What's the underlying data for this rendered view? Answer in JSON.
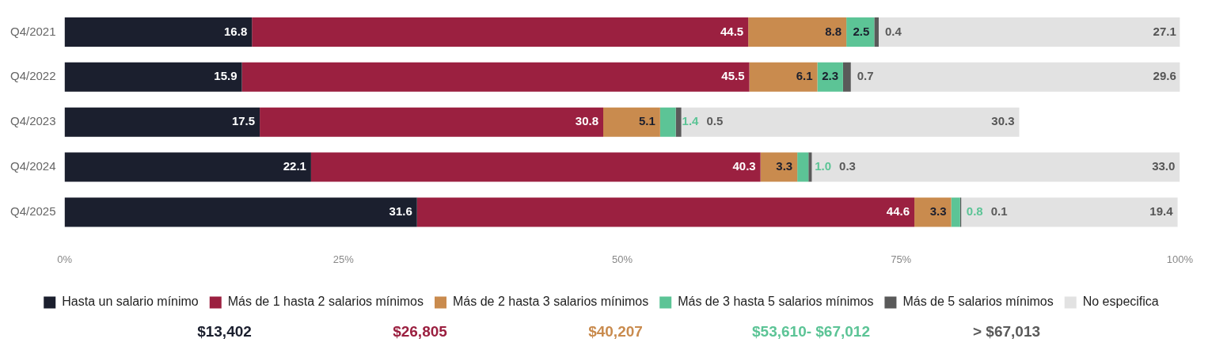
{
  "chart_data": {
    "type": "bar",
    "orientation": "horizontal",
    "stacked": true,
    "grid": false,
    "legend": "bottom",
    "categories": [
      "Q4/2021",
      "Q4/2022",
      "Q4/2023",
      "Q4/2024",
      "Q4/2025"
    ],
    "series": [
      {
        "name": "Hasta un salario mínimo",
        "color": "#1b1f2e",
        "values": [
          16.8,
          15.9,
          17.5,
          22.1,
          31.6
        ],
        "value_labels": [
          "16.8",
          "15.9",
          "17.5",
          "22.1",
          "31.6"
        ]
      },
      {
        "name": "Más de 1 hasta 2 salarios mínimos",
        "color": "#9b2040",
        "values": [
          44.5,
          45.5,
          30.8,
          40.3,
          44.6
        ],
        "value_labels": [
          "44.5",
          "45.5",
          "30.8",
          "40.3",
          "44.6"
        ]
      },
      {
        "name": "Más de 2 hasta 3 salarios mínimos",
        "color": "#c98b4e",
        "values": [
          8.8,
          6.1,
          5.1,
          3.3,
          3.3
        ],
        "value_labels": [
          "8.8",
          "6.1",
          "5.1",
          "3.3",
          "3.3"
        ]
      },
      {
        "name": "Más de 3 hasta 5 salarios mínimos",
        "color": "#5cc496",
        "values": [
          2.5,
          2.3,
          1.4,
          1.0,
          0.8
        ],
        "value_labels": [
          "2.5",
          "2.3",
          "1.4",
          "1.0",
          "0.8"
        ]
      },
      {
        "name": "Más de 5 salarios mínimos",
        "color": "#5a5a5a",
        "values": [
          0.4,
          0.7,
          0.5,
          0.3,
          0.1
        ],
        "value_labels": [
          "0.4",
          "0.7",
          "0.5",
          "0.3",
          "0.1"
        ]
      },
      {
        "name": "No especifica",
        "color": "#e2e2e2",
        "values": [
          27.1,
          29.6,
          30.3,
          33.0,
          19.4
        ],
        "value_labels": [
          "27.1",
          "29.6",
          "30.3",
          "33.0",
          "19.4"
        ]
      }
    ],
    "xlim": [
      0,
      100
    ],
    "xticks": [
      {
        "value": 0,
        "label": "0%"
      },
      {
        "value": 25,
        "label": "25%"
      },
      {
        "value": 50,
        "label": "50%"
      },
      {
        "value": 75,
        "label": "75%"
      },
      {
        "value": 100,
        "label": "100%"
      }
    ],
    "annotations": [
      "$13,402",
      "$26,805",
      "$40,207",
      "$53,610- $67,012",
      "> $67,013"
    ]
  }
}
